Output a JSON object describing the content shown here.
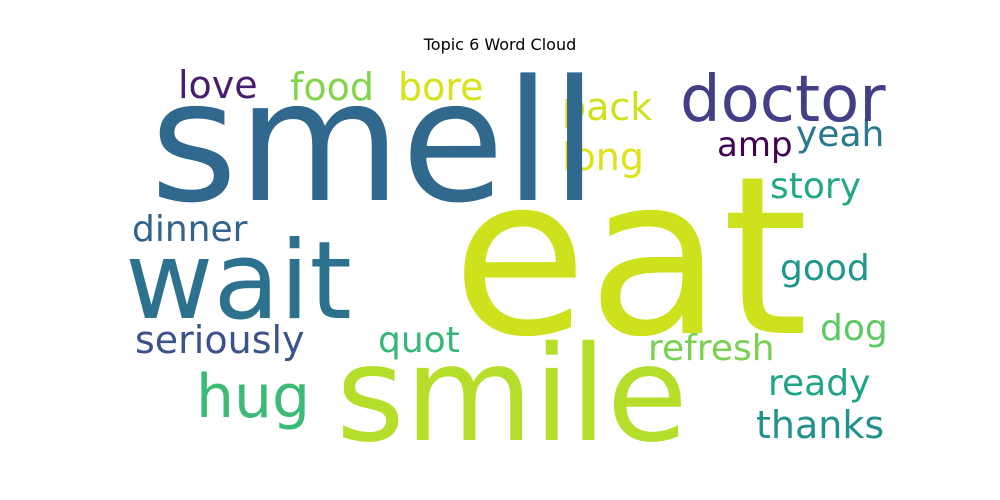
{
  "chart_data": {
    "type": "wordcloud",
    "title": "Topic 6 Word Cloud",
    "words": [
      {
        "text": "smell",
        "color": "#31688e"
      },
      {
        "text": "eat",
        "color": "#cde11d"
      },
      {
        "text": "wait",
        "color": "#2c728e"
      },
      {
        "text": "smile",
        "color": "#b5de2b"
      },
      {
        "text": "doctor",
        "color": "#433e85"
      },
      {
        "text": "hug",
        "color": "#3bbb75"
      },
      {
        "text": "love",
        "color": "#481f70"
      },
      {
        "text": "food",
        "color": "#84d44b"
      },
      {
        "text": "bore",
        "color": "#d8e219"
      },
      {
        "text": "pack",
        "color": "#d0e11c"
      },
      {
        "text": "long",
        "color": "#dde318"
      },
      {
        "text": "amp",
        "color": "#440154"
      },
      {
        "text": "yeah",
        "color": "#2a788e"
      },
      {
        "text": "story",
        "color": "#22a884"
      },
      {
        "text": "dinner",
        "color": "#33638d"
      },
      {
        "text": "good",
        "color": "#1f988b"
      },
      {
        "text": "seriously",
        "color": "#3b528b"
      },
      {
        "text": "quot",
        "color": "#35b779"
      },
      {
        "text": "dog",
        "color": "#5ec962"
      },
      {
        "text": "refresh",
        "color": "#7ad151"
      },
      {
        "text": "ready",
        "color": "#20a486"
      },
      {
        "text": "thanks",
        "color": "#21918c"
      }
    ]
  }
}
